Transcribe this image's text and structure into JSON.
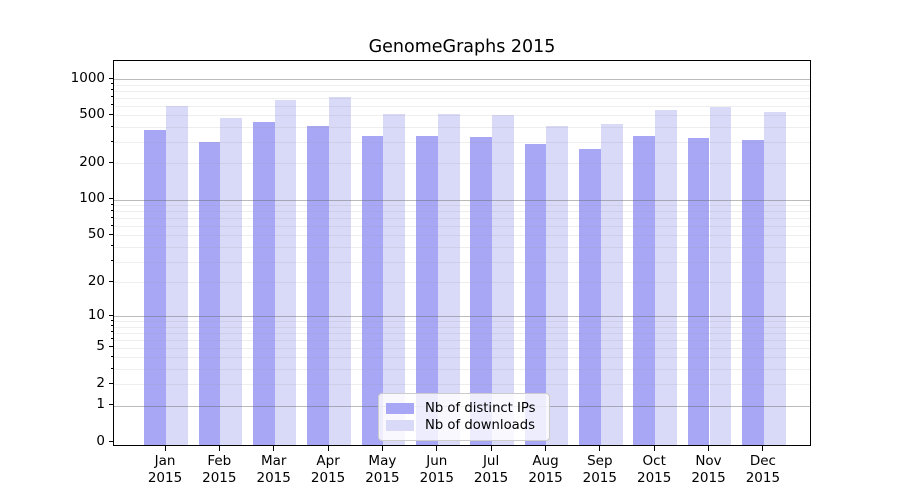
{
  "chart_data": {
    "type": "bar",
    "title": "GenomeGraphs 2015",
    "categories": [
      "Jan",
      "Feb",
      "Mar",
      "Apr",
      "May",
      "Jun",
      "Jul",
      "Aug",
      "Sep",
      "Oct",
      "Nov",
      "Dec"
    ],
    "category_year": "2015",
    "series": [
      {
        "name": "Nb of distinct IPs",
        "color": "#a7a7f6",
        "values": [
          375,
          300,
          440,
          405,
          340,
          335,
          330,
          290,
          265,
          335,
          325,
          315
        ]
      },
      {
        "name": "Nb of downloads",
        "color": "#d9d9f8",
        "values": [
          600,
          480,
          665,
          705,
          510,
          515,
          500,
          405,
          425,
          550,
          585,
          535
        ]
      }
    ],
    "yscale": "log1p",
    "ylim": [
      0,
      1400
    ],
    "y_tick_values": [
      0,
      1,
      2,
      5,
      10,
      20,
      50,
      100,
      200,
      500,
      1000
    ],
    "y_major_gridline_values": [
      1,
      10,
      100,
      1000
    ],
    "grid": "both",
    "legend_position": "lower center",
    "colors": {
      "bar_distinct_ips": "#a7a7f6",
      "bar_downloads": "#d9d9f8",
      "major_grid": "#6969694d",
      "minor_grid": "#96969629",
      "spine": "#000000"
    }
  }
}
